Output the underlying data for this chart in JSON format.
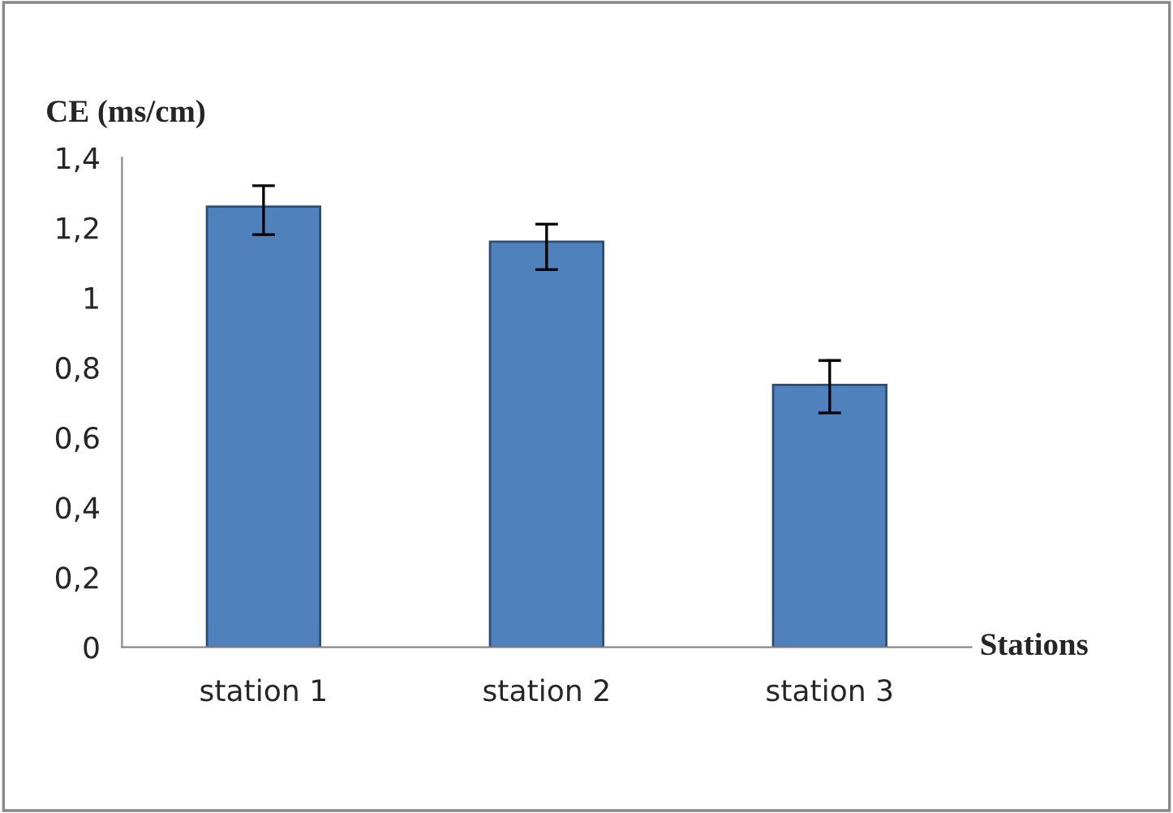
{
  "chart_data": {
    "type": "bar",
    "ylabel": "CE (ms/cm)",
    "xlabel": "Stations",
    "categories": [
      "station 1",
      "station 2",
      "station 3"
    ],
    "values": [
      1.26,
      1.16,
      0.75
    ],
    "errors": [
      [
        1.18,
        1.32
      ],
      [
        1.08,
        1.21
      ],
      [
        0.67,
        0.82
      ]
    ],
    "color": "#4f81bd",
    "ylim": [
      0,
      1.4
    ],
    "yticks": [
      0,
      {
        "value": 0.2,
        "label": "0,2"
      },
      {
        "value": 0.4,
        "label": "0,4"
      },
      {
        "value": 0.6,
        "label": "0,6"
      },
      {
        "value": 0.8,
        "label": "0,8"
      },
      1,
      {
        "value": 1.2,
        "label": "1,2"
      },
      {
        "value": 1.4,
        "label": "1,4"
      }
    ],
    "grid": false,
    "legend": false
  }
}
